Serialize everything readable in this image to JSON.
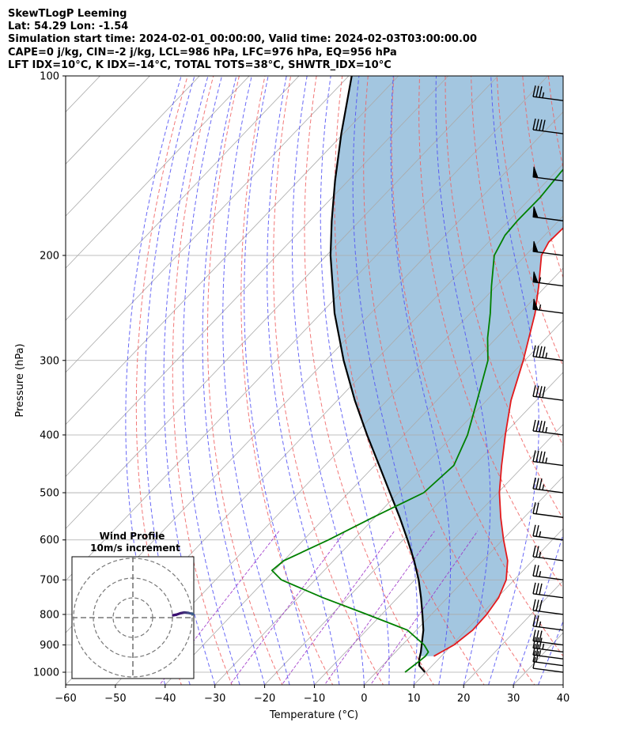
{
  "header": {
    "line1": "SkewTLogP Leeming",
    "line2": "Lat: 54.29   Lon: -1.54",
    "line3": "Simulation start time: 2024-02-01_00:00:00, Valid time: 2024-02-03T03:00:00.00",
    "line4": "CAPE=0 j/kg, CIN=-2 j/kg, LCL=986 hPa, LFC=976 hPa, EQ=956 hPa",
    "line5": "LFT IDX=10°C, K IDX=-14°C, TOTAL TOTS=38°C, SHWTR_IDX=10°C"
  },
  "chart_data": {
    "type": "line",
    "subtype": "skew-t log-p",
    "xlabel": "Temperature (°C)",
    "ylabel": "Pressure (hPa)",
    "xlim": [
      -60,
      40
    ],
    "ylim": [
      1050,
      100
    ],
    "yscale": "log",
    "x_ticks": [
      -60,
      -50,
      -40,
      -30,
      -20,
      -10,
      0,
      10,
      20,
      30,
      40
    ],
    "x_tick_labels": [
      "−60",
      "−50",
      "−40",
      "−30",
      "−20",
      "−10",
      "0",
      "10",
      "20",
      "30",
      "40"
    ],
    "y_ticks": [
      1000,
      900,
      800,
      700,
      600,
      500,
      400,
      300,
      200,
      100
    ],
    "y_tick_labels": [
      "1000",
      "900",
      "800",
      "700",
      "600",
      "500",
      "400",
      "300",
      "200",
      "100"
    ],
    "grid": true,
    "colors": {
      "temperature": "#e31a1c",
      "dewpoint": "#008000",
      "parcel": "#000000",
      "fill": "#a3c6e0",
      "dry_adiabat": "#f06060",
      "moist_adiabat": "#4d4df5",
      "mixing_ratio": "#9b30c8",
      "isotherm": "#aaaaaa",
      "isobar": "#aaaaaa"
    },
    "series": [
      {
        "key": "temperature",
        "pressure": [
          940,
          925,
          900,
          850,
          800,
          750,
          700,
          650,
          600,
          550,
          500,
          450,
          400,
          350,
          300,
          275,
          250,
          225,
          200,
          190,
          175,
          165,
          150,
          140,
          130,
          115,
          100
        ],
        "temp": [
          8.5,
          9.2,
          10.4,
          11.3,
          11.1,
          10.3,
          8.4,
          5.0,
          0.2,
          -4.7,
          -9.7,
          -14.5,
          -19.6,
          -25.1,
          -30.3,
          -33.5,
          -37.0,
          -41.5,
          -46.8,
          -47.9,
          -47.6,
          -46.4,
          -44.7,
          -41.3,
          -35.9,
          -25.1,
          -18.5
        ]
      },
      {
        "key": "dewpoint",
        "pressure": [
          1000,
          960,
          940,
          925,
          900,
          850,
          800,
          750,
          700,
          675,
          650,
          600,
          550,
          500,
          450,
          400,
          350,
          300,
          275,
          250,
          225,
          200,
          185,
          175,
          160,
          145,
          130,
          120,
          110,
          100
        ],
        "temp": [
          5.8,
          6.5,
          6.8,
          6.6,
          4.4,
          -1.8,
          -12.9,
          -25.0,
          -36.8,
          -40.5,
          -40.0,
          -35.0,
          -30.4,
          -24.9,
          -24.1,
          -27.2,
          -31.9,
          -37.4,
          -41.8,
          -46.0,
          -51.0,
          -56.3,
          -58.0,
          -58.3,
          -58.2,
          -58.9,
          -59.3,
          -58.0,
          -57.3,
          -57.4
        ]
      },
      {
        "key": "parcel",
        "pressure": [
          1000,
          975,
          950,
          925,
          900,
          850,
          800,
          750,
          700,
          650,
          600,
          550,
          500,
          450,
          400,
          350,
          300,
          250,
          200,
          175,
          150,
          125,
          100
        ],
        "temp": [
          9.8,
          7.4,
          6.1,
          5.1,
          3.9,
          1.4,
          -1.8,
          -5.3,
          -9.2,
          -13.8,
          -19.1,
          -25.0,
          -31.7,
          -39.1,
          -47.4,
          -56.5,
          -66.4,
          -77.3,
          -89.2,
          -95.6,
          -102.6,
          -110.4,
          -119.4
        ]
      }
    ],
    "wind_barbs": [
      {
        "pressure": 1000,
        "speed_kt": 10
      },
      {
        "pressure": 975,
        "speed_kt": 20
      },
      {
        "pressure": 950,
        "speed_kt": 25
      },
      {
        "pressure": 925,
        "speed_kt": 35
      },
      {
        "pressure": 900,
        "speed_kt": 30
      },
      {
        "pressure": 850,
        "speed_kt": 25
      },
      {
        "pressure": 800,
        "speed_kt": 30
      },
      {
        "pressure": 750,
        "speed_kt": 30
      },
      {
        "pressure": 700,
        "speed_kt": 25
      },
      {
        "pressure": 650,
        "speed_kt": 25
      },
      {
        "pressure": 600,
        "speed_kt": 25
      },
      {
        "pressure": 550,
        "speed_kt": 20
      },
      {
        "pressure": 500,
        "speed_kt": 35
      },
      {
        "pressure": 450,
        "speed_kt": 45
      },
      {
        "pressure": 400,
        "speed_kt": 45
      },
      {
        "pressure": 350,
        "speed_kt": 40
      },
      {
        "pressure": 300,
        "speed_kt": 45
      },
      {
        "pressure": 250,
        "speed_kt": 55
      },
      {
        "pressure": 225,
        "speed_kt": 55
      },
      {
        "pressure": 200,
        "speed_kt": 50
      },
      {
        "pressure": 175,
        "speed_kt": 50
      },
      {
        "pressure": 150,
        "speed_kt": 50
      },
      {
        "pressure": 125,
        "speed_kt": 40
      },
      {
        "pressure": 110,
        "speed_kt": 35
      }
    ],
    "inset": {
      "title_line1": "Wind Profile",
      "title_line2": "10m/s increment",
      "hodograph_u": [
        10.2,
        11.0,
        12.0,
        13.0,
        14.0,
        15.0,
        16.0,
        17.0,
        18.0,
        19.0
      ],
      "hodograph_v": [
        -1.2,
        -1.5,
        -2.2,
        -2.6,
        -2.4,
        -1.9,
        -1.7,
        -1.5,
        -1.3,
        -1.1
      ]
    }
  }
}
